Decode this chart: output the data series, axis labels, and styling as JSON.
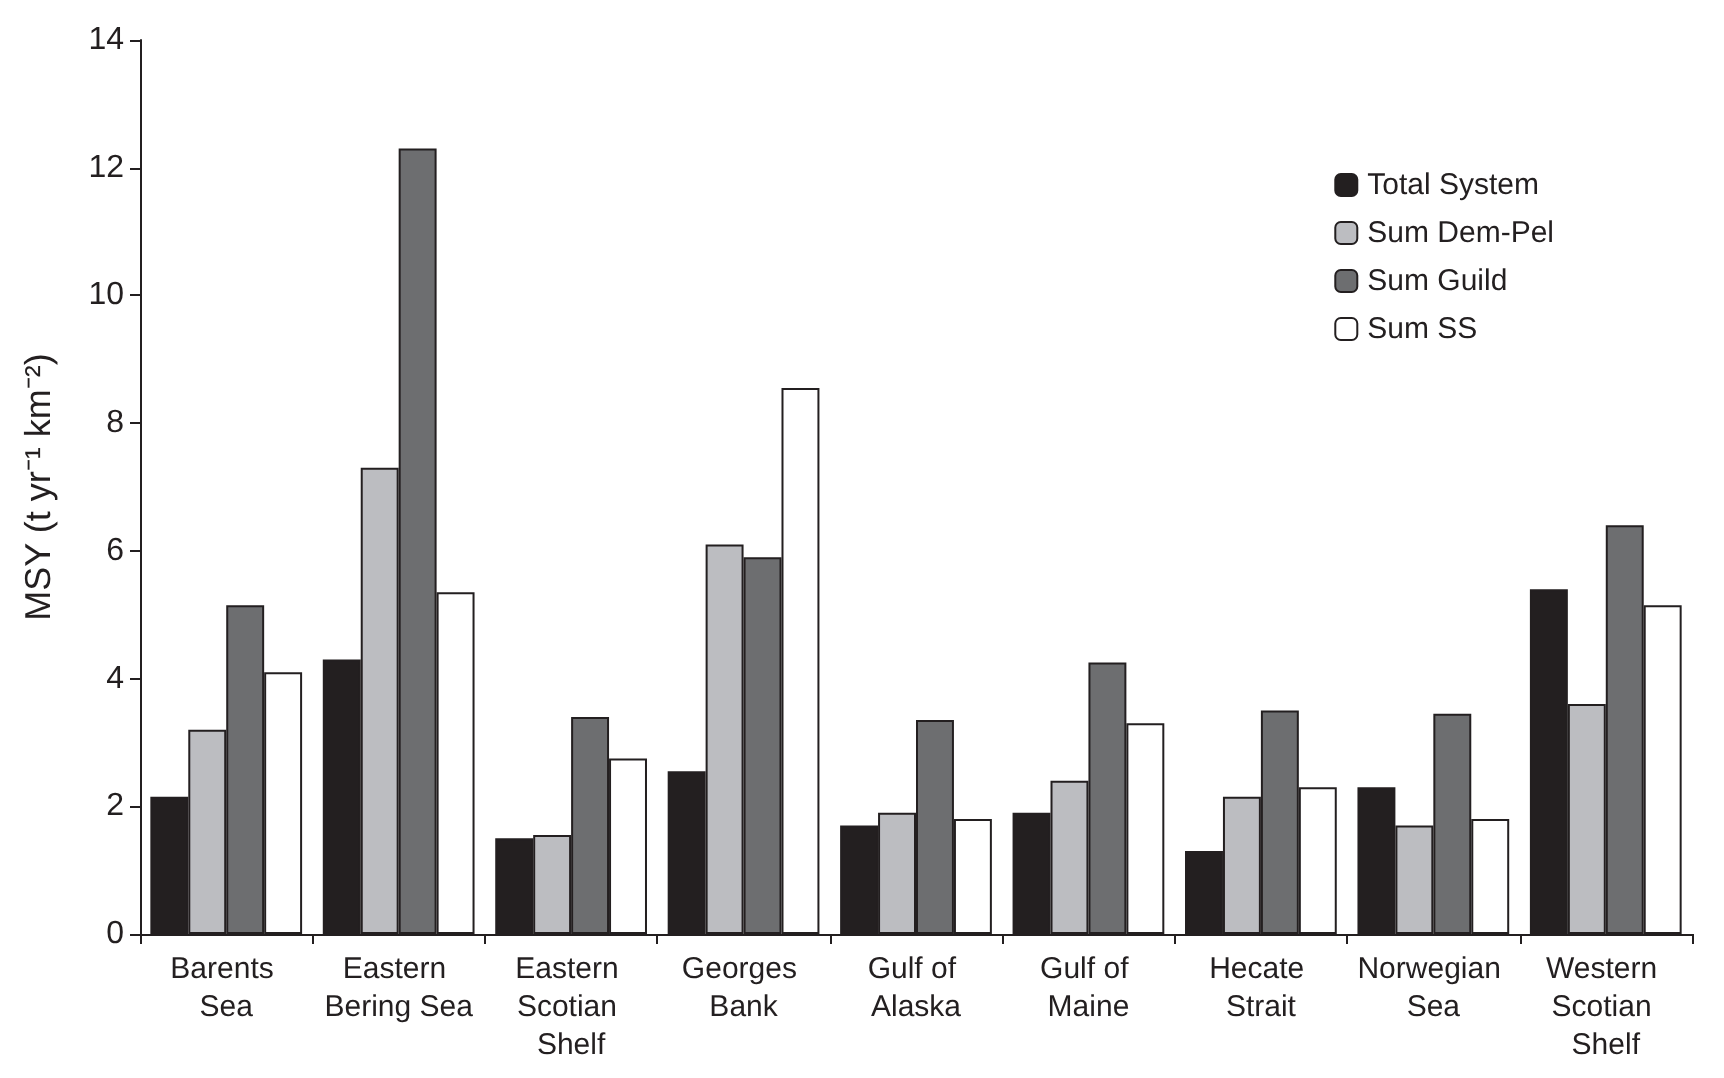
{
  "chart_data": {
    "type": "bar",
    "ylabel": "MSY (t yr⁻¹ km⁻²)",
    "categories": [
      "Barents Sea",
      "Eastern Bering Sea",
      "Eastern Scotian Shelf",
      "Georges Bank",
      "Gulf of Alaska",
      "Gulf of Maine",
      "Hecate Strait",
      "Norwegian Sea",
      "Western Scotian Shelf"
    ],
    "series": [
      {
        "name": "Total System",
        "color": "#231f20",
        "values": [
          2.15,
          4.3,
          1.5,
          2.55,
          1.7,
          1.9,
          1.3,
          2.3,
          5.4
        ]
      },
      {
        "name": "Sum Dem-Pel",
        "color": "#bcbdc1",
        "values": [
          3.2,
          7.3,
          1.55,
          6.1,
          1.9,
          2.4,
          2.15,
          1.7,
          3.6
        ]
      },
      {
        "name": "Sum Guild",
        "color": "#6d6e70",
        "values": [
          5.15,
          12.3,
          3.4,
          5.9,
          3.35,
          4.25,
          3.5,
          3.45,
          6.4
        ]
      },
      {
        "name": "Sum SS",
        "color": "#ffffff",
        "values": [
          4.1,
          5.35,
          2.75,
          8.55,
          1.8,
          3.3,
          2.3,
          1.8,
          5.15
        ]
      }
    ],
    "ylim": [
      0,
      14
    ],
    "yticks": [
      0,
      2,
      4,
      6,
      8,
      10,
      12,
      14
    ],
    "grid": false,
    "legend": "top right"
  }
}
